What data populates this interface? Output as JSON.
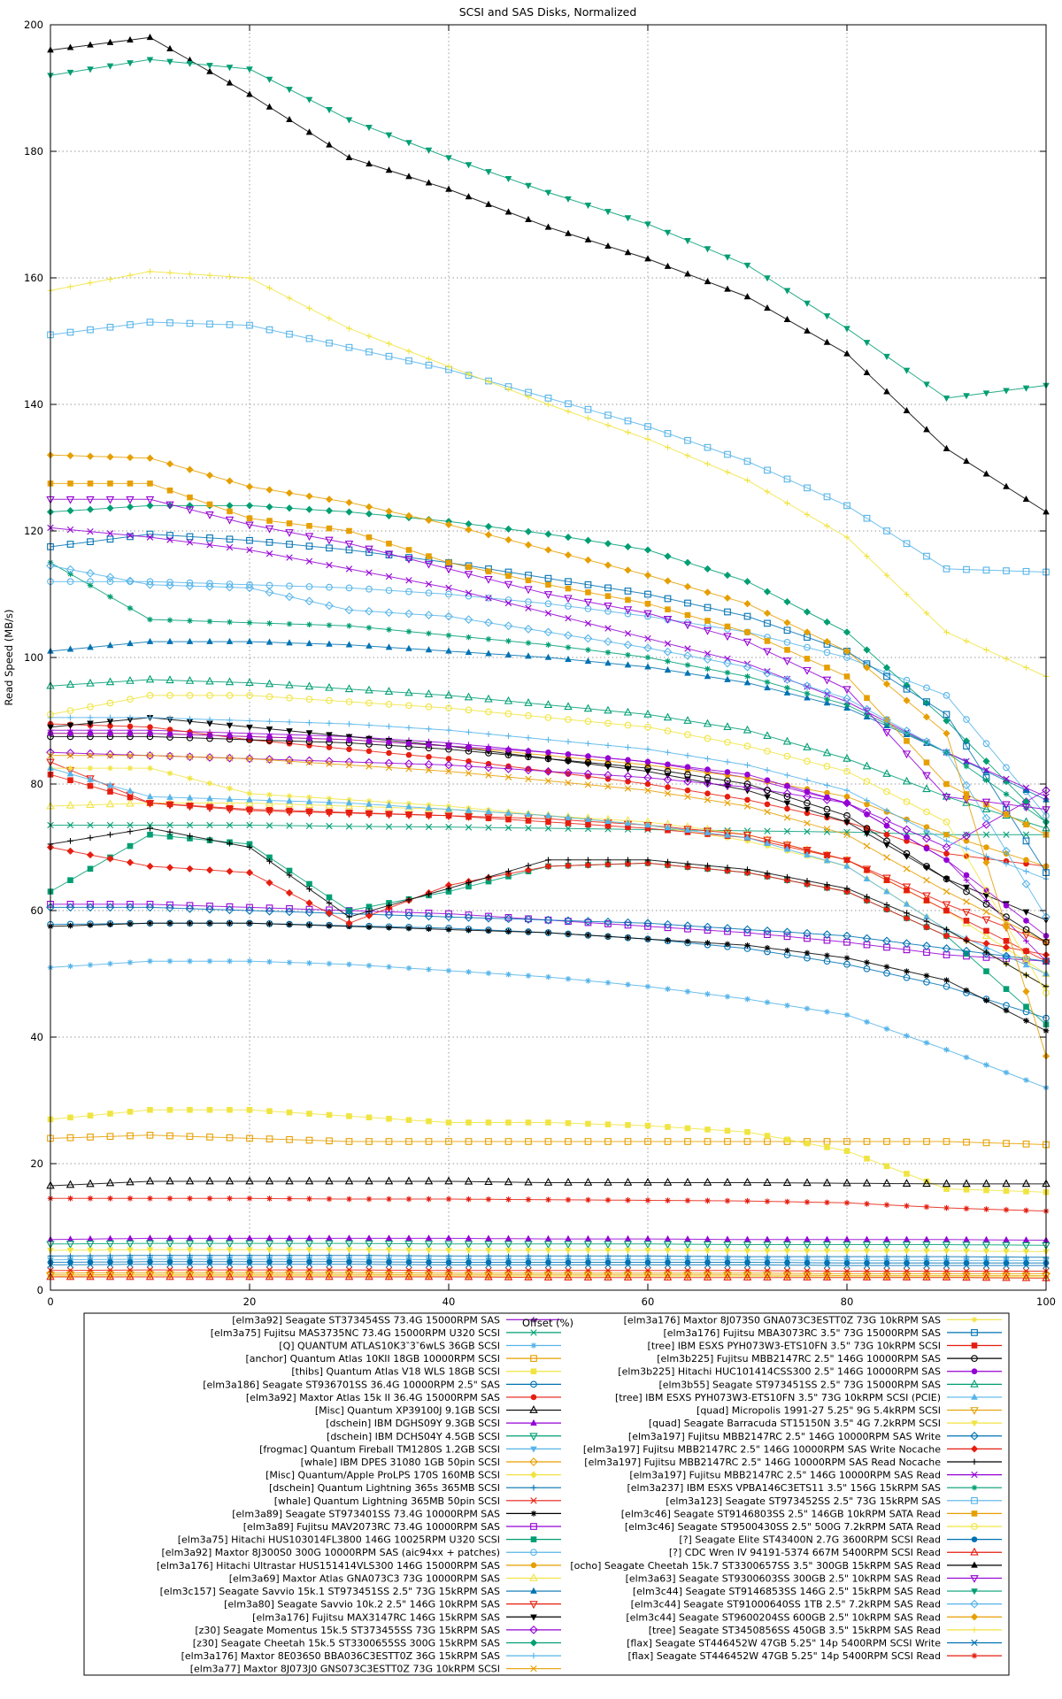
{
  "chart_data": {
    "type": "line",
    "title": "SCSI and SAS Disks, Normalized",
    "xlabel": "Offset (%)",
    "ylabel": "Read Speed (MB/s)",
    "xlim": [
      0,
      100
    ],
    "ylim": [
      0,
      200
    ],
    "xticks": [
      0,
      20,
      40,
      60,
      80,
      100
    ],
    "yticks": [
      0,
      20,
      40,
      60,
      80,
      100,
      120,
      140,
      160,
      180,
      200
    ],
    "grid": true,
    "legend_position": "below-two-columns",
    "legend_columns": [
      28,
      27
    ],
    "palette": [
      "#9400d3",
      "#009e73",
      "#56b4e9",
      "#e69f00",
      "#f0e442",
      "#0072b2",
      "#e51e10",
      "#000000"
    ],
    "x_anchors": [
      0,
      10,
      20,
      30,
      40,
      50,
      60,
      70,
      80,
      90,
      100
    ],
    "marker_step": 2,
    "series": [
      {
        "label": "[elm3a92] Seagate ST373454SS 73.4G 15000RPM SAS",
        "color": "#9400d3",
        "marker": "plus",
        "values": [
          88.5,
          88.5,
          88,
          87.5,
          86.5,
          85,
          83.5,
          81,
          77,
          68,
          52
        ]
      },
      {
        "label": "[elm3a75] Fujitsu MAS3735NC 73.4G 15000RPM U320 SCSI",
        "color": "#009e73",
        "marker": "cross",
        "values": [
          73.5,
          73.5,
          73.5,
          73.3,
          73.2,
          73,
          72.8,
          72.6,
          72.4,
          72,
          72
        ]
      },
      {
        "label": "[Q] QUANTUM ATLAS10K3‶3‶6wLS 36GB SCSI",
        "color": "#56b4e9",
        "marker": "star",
        "values": [
          51,
          52,
          52,
          51.5,
          50.5,
          49.5,
          48,
          46,
          43.5,
          38,
          32
        ]
      },
      {
        "label": "[anchor] Quantum Atlas 10KII 18GB 10000RPM SCSI",
        "color": "#e69f00",
        "marker": "box",
        "values": [
          24,
          24.5,
          24,
          23.5,
          23.5,
          23.5,
          23.5,
          23.5,
          23.5,
          23.5,
          23
        ]
      },
      {
        "label": "[thibs] Quantum Atlas V18 WLS 18GB SCSI",
        "color": "#f0e442",
        "marker": "box-filled",
        "values": [
          27,
          28.5,
          28.5,
          27.5,
          26.5,
          26.5,
          26,
          25,
          22,
          16,
          15.5
        ]
      },
      {
        "label": "[elm3a186] Seagate ST936701SS 36.4G 10000RPM 2.5\" SAS",
        "color": "#0072b2",
        "marker": "circle",
        "values": [
          57.8,
          58,
          58,
          57.6,
          57.2,
          56.5,
          55.5,
          54,
          51.5,
          48,
          43
        ]
      },
      {
        "label": "[elm3a92] Maxtor Atlas 15k II 36.4G 15000RPM SAS",
        "color": "#e51e10",
        "marker": "circle-filled",
        "values": [
          89.5,
          89,
          87,
          85.5,
          84,
          82,
          80,
          77.5,
          74,
          69,
          67
        ]
      },
      {
        "label": "[Misc] Quantum XP39100J 9.1GB SCSI",
        "color": "#000000",
        "marker": "triangle-up",
        "values": [
          16.5,
          17.2,
          17.2,
          17.2,
          17.2,
          17,
          17,
          17,
          16.9,
          16.8,
          16.8
        ]
      },
      {
        "label": "[dschein] IBM DGHS09Y 9.3GB SCSI",
        "color": "#9400d3",
        "marker": "triangle-up-filled",
        "values": [
          8,
          8.2,
          8.2,
          8.2,
          8.2,
          8.1,
          8.1,
          8,
          8,
          8,
          7.9
        ]
      },
      {
        "label": "[dschein] IBM DCHS04Y 4.5GB SCSI",
        "color": "#009e73",
        "marker": "triangle-down",
        "values": [
          7.3,
          7.4,
          7.4,
          7.4,
          7.3,
          7.3,
          7.3,
          7.2,
          7.2,
          7.2,
          7.1
        ]
      },
      {
        "label": "[frogmac] Quantum Fireball TM1280S 1.2GB SCSI",
        "color": "#56b4e9",
        "marker": "triangle-down-filled",
        "values": [
          4.8,
          4.9,
          4.9,
          4.9,
          4.8,
          4.8,
          4.8,
          4.8,
          4.7,
          4.7,
          4.7
        ]
      },
      {
        "label": "[whale] IBM DPES 31080 1GB 50pin SCSI",
        "color": "#e69f00",
        "marker": "diamond",
        "values": [
          2.7,
          2.8,
          2.8,
          2.8,
          2.7,
          2.7,
          2.7,
          2.7,
          2.6,
          2.6,
          2.6
        ]
      },
      {
        "label": "[Misc] Quantum/Apple ProLPS 170S 160MB SCSI",
        "color": "#f0e442",
        "marker": "diamond-filled",
        "values": [
          2.2,
          2.3,
          2.3,
          2.3,
          2.2,
          2.2,
          2.2,
          2.2,
          2.1,
          2.1,
          2.1
        ]
      },
      {
        "label": "[dschein] Quantum Lightning 365s 365MB SCSI",
        "color": "#0072b2",
        "marker": "plus",
        "values": [
          5.4,
          5.5,
          5.5,
          5.5,
          5.4,
          5.4,
          5.4,
          5.3,
          5.3,
          5.3,
          5.2
        ]
      },
      {
        "label": "[whale] Quantum Lightning 365MB 50pin SCSI",
        "color": "#e51e10",
        "marker": "cross",
        "values": [
          3.1,
          3.2,
          3.2,
          3.2,
          3.1,
          3.1,
          3.1,
          3.1,
          3,
          3,
          3
        ]
      },
      {
        "label": "[elm3a89] Seagate ST973401SS 73.4G 10000RPM SAS",
        "color": "#000000",
        "marker": "star",
        "values": [
          57.5,
          58,
          58,
          57.5,
          57,
          56.5,
          55.5,
          54.5,
          52.5,
          49,
          41
        ]
      },
      {
        "label": "[elm3a89] Fujitsu MAV2073RC 73.4G 10000RPM SAS",
        "color": "#9400d3",
        "marker": "box",
        "values": [
          61,
          61,
          60.5,
          60,
          59.5,
          58.5,
          57.5,
          56.5,
          55,
          53,
          52
        ]
      },
      {
        "label": "[elm3a75] Hitachi HUS103014FL3800 146G 10025RPM U320 SCSI",
        "color": "#009e73",
        "marker": "box-filled",
        "values": [
          63,
          72,
          70.5,
          60,
          63,
          67,
          67.5,
          66,
          63,
          56,
          42
        ]
      },
      {
        "label": "[elm3a92] Maxtor 8J300S0 300G 10000RPM SAS (aic94xx + patches)",
        "color": "#56b4e9",
        "marker": "circle",
        "values": [
          112,
          112,
          111.5,
          111,
          110,
          108.5,
          106.5,
          104,
          100,
          94,
          75
        ]
      },
      {
        "label": "[elm3a176] Hitachi Ultrastar HUS151414VLS300 146G 15000RPM SAS",
        "color": "#e69f00",
        "marker": "circle-filled",
        "values": [
          88,
          88,
          87.5,
          87,
          86,
          84.5,
          83,
          81,
          78,
          72,
          67
        ]
      },
      {
        "label": "[elm3a69] Maxtor Atlas GNA073C3 73G 10000RPM SAS",
        "color": "#f0e442",
        "marker": "triangle-up",
        "values": [
          76.5,
          77,
          77,
          76.5,
          76,
          75,
          74,
          72,
          68,
          60,
          50
        ]
      },
      {
        "label": "[elm3c157] Seagate Savvio 15k.1 ST973451SS 2.5\" 73G 15kRPM SAS",
        "color": "#0072b2",
        "marker": "triangle-up-filled",
        "values": [
          101,
          102.5,
          102.5,
          102,
          101,
          100,
          98.5,
          96,
          92,
          85,
          77.5
        ]
      },
      {
        "label": "[elm3a80] Seagate Savvio 10k.2 2.5\" 146G 10kRPM SAS",
        "color": "#e51e10",
        "marker": "triangle-down",
        "values": [
          83.5,
          77,
          75.8,
          75.4,
          75,
          74.5,
          73.5,
          72,
          68,
          61,
          55
        ]
      },
      {
        "label": "[elm3a176] Fujitsu MAX3147RC 146G 15kRPM SAS",
        "color": "#000000",
        "marker": "triangle-down-filled",
        "values": [
          89,
          90.5,
          89,
          87.5,
          86,
          84,
          82,
          79,
          74,
          65,
          58.5
        ]
      },
      {
        "label": "[z30] Seagate Momentus 15k.5 ST373455SS 73G 15kRPM SAS",
        "color": "#9400d3",
        "marker": "diamond",
        "values": [
          85,
          84.5,
          84,
          83.5,
          83,
          82,
          81,
          79.5,
          77,
          70,
          79
        ]
      },
      {
        "label": "[z30] Seagate Cheetah 15k.5 ST3300655SS 300G 15kRPM SAS",
        "color": "#009e73",
        "marker": "diamond-filled",
        "values": [
          123,
          124,
          124,
          123,
          121.5,
          119.5,
          117,
          112,
          104,
          90,
          74
        ]
      },
      {
        "label": "[elm3a176] Maxtor 8E036S0 BBA036C3ESTT0Z 36G 15kRPM SAS",
        "color": "#56b4e9",
        "marker": "plus",
        "values": [
          90.5,
          90.5,
          90,
          89.5,
          88.5,
          87,
          85.5,
          83,
          79,
          71,
          65
        ]
      },
      {
        "label": "[elm3a77] Maxtor 8J073J0 GNS073C3ESTT0Z 73G 10kRPM SCSI",
        "color": "#e69f00",
        "marker": "cross",
        "values": [
          84.5,
          84.5,
          84,
          83,
          82,
          80.5,
          79,
          76.5,
          72,
          63,
          55
        ]
      },
      {
        "label": "[elm3a176] Maxtor 8J073S0 GNA073C3ESTT0Z 73G 10kRPM SAS",
        "color": "#f0e442",
        "marker": "star",
        "values": [
          82.5,
          82.5,
          78.5,
          77.5,
          76.5,
          75,
          73.5,
          71,
          67,
          57,
          48
        ]
      },
      {
        "label": "[elm3a176] Fujitsu MBA3073RC 3.5\" 73G 15000RPM SAS",
        "color": "#0072b2",
        "marker": "box",
        "values": [
          117.5,
          119.5,
          118.5,
          117,
          115,
          112.5,
          110,
          106.5,
          101,
          91,
          66
        ]
      },
      {
        "label": "[tree] IBM ESXS PYH073W3-ETS10FN 3.5\" 73G 10kRPM SCSI",
        "color": "#e51e10",
        "marker": "box-filled",
        "values": [
          81.5,
          77,
          76,
          75.5,
          75,
          74,
          73,
          71.5,
          68,
          60,
          52
        ]
      },
      {
        "label": "[elm3b225] Fujitsu MBB2147RC 2.5\" 146G 10000RPM SAS",
        "color": "#000000",
        "marker": "circle",
        "values": [
          87.5,
          87.5,
          87,
          86.5,
          85.5,
          84,
          82.5,
          80,
          75,
          65,
          55
        ]
      },
      {
        "label": "[elm3b225] Hitachi HUC101414CSS300 2.5\" 146G 10000RPM SAS",
        "color": "#9400d3",
        "marker": "circle-filled",
        "values": [
          88,
          88,
          87.5,
          87,
          86,
          85,
          83.5,
          81.5,
          77,
          68,
          56
        ]
      },
      {
        "label": "[elm3b55] Seagate ST973451SS 2.5\" 73G 15000RPM SAS",
        "color": "#009e73",
        "marker": "triangle-up",
        "values": [
          95.5,
          96.5,
          96,
          95,
          94,
          92.5,
          91,
          88.5,
          84,
          78,
          73
        ]
      },
      {
        "label": "[tree] IBM ESXS PYH073W3-ETS10FN 3.5\" 73G 10kRPM SCSI (PCIE)",
        "color": "#56b4e9",
        "marker": "triangle-up-filled",
        "values": [
          82.5,
          78,
          77.5,
          77,
          76,
          75,
          73.5,
          71.5,
          67,
          57,
          50
        ]
      },
      {
        "label": "[quad] Micropolis 1991-27 5.25\" 9G 5.4kRPM SCSI",
        "color": "#e69f00",
        "marker": "triangle-down",
        "values": [
          2.4,
          2.5,
          2.5,
          2.5,
          2.4,
          2.4,
          2.4,
          2.4,
          2.3,
          2.3,
          2.3
        ]
      },
      {
        "label": "[quad] Seagate Barracuda ST15150N 3.5\" 4G 7.2kRPM SCSI",
        "color": "#f0e442",
        "marker": "triangle-down-filled",
        "values": [
          6.3,
          6.4,
          6.4,
          6.4,
          6.3,
          6.3,
          6.3,
          6.2,
          6.2,
          6.2,
          6.1
        ]
      },
      {
        "label": "[elm3a197] Fujitsu MBB2147RC 2.5\" 146G 10000RPM SAS Write",
        "color": "#0072b2",
        "marker": "diamond",
        "values": [
          60.5,
          60.5,
          60,
          59.5,
          59,
          58.5,
          58,
          57,
          56,
          54,
          52
        ]
      },
      {
        "label": "[elm3a197] Fujitsu MBB2147RC 2.5\" 146G 10000RPM SAS Write Nocache",
        "color": "#e51e10",
        "marker": "diamond-filled",
        "values": [
          70,
          67,
          66,
          58,
          64,
          67,
          67.5,
          66,
          63,
          56,
          53
        ]
      },
      {
        "label": "[elm3a197] Fujitsu MBB2147RC 2.5\" 146G 10000RPM SAS Read Nocache",
        "color": "#000000",
        "marker": "plus",
        "values": [
          70.5,
          73,
          70,
          59,
          63.5,
          68,
          68,
          66.5,
          63.5,
          57,
          48
        ]
      },
      {
        "label": "[elm3a197] Fujitsu MBB2147RC 2.5\" 146G 10000RPM SAS Read",
        "color": "#9400d3",
        "marker": "cross",
        "values": [
          120.5,
          119,
          117,
          114,
          111,
          107,
          103,
          99,
          93,
          85,
          78
        ]
      },
      {
        "label": "[elm3a237] IBM ESXS VPBA146C3ETS11 3.5\" 156G 15kRPM SAS",
        "color": "#009e73",
        "marker": "star",
        "values": [
          115,
          106,
          105.5,
          105,
          103.5,
          102,
          100,
          97,
          92.5,
          85,
          74
        ]
      },
      {
        "label": "[elm3a123] Seagate ST973452SS 2.5\" 73G 15kRPM SAS",
        "color": "#56b4e9",
        "marker": "box",
        "values": [
          151,
          153,
          152.5,
          149,
          145.5,
          141,
          136.5,
          131,
          124,
          114,
          113.5
        ]
      },
      {
        "label": "[elm3c46] Seagate ST9146803SS 2.5\" 146GB 10kRPM SATA Read",
        "color": "#e69f00",
        "marker": "box-filled",
        "values": [
          127.5,
          127.5,
          122,
          120,
          115,
          111.5,
          108.5,
          104,
          97,
          80,
          72
        ]
      },
      {
        "label": "[elm3c46] Seagate ST9500430SS 2.5\" 500G 7.2kRPM SATA Read",
        "color": "#f0e442",
        "marker": "circle",
        "values": [
          91,
          94,
          94,
          93,
          92,
          90.5,
          89,
          86,
          82,
          74,
          47
        ]
      },
      {
        "label": "[?] Seagate Elite ST43400N 2.7G 3600RPM SCSI Read",
        "color": "#0072b2",
        "marker": "circle-filled",
        "values": [
          4.4,
          4.5,
          4.5,
          4.5,
          4.4,
          4.4,
          4.4,
          4.4,
          4.3,
          4.3,
          4.3
        ]
      },
      {
        "label": "[?] CDC Wren IV 94191-5374 667M 5400RPM SCSI Read",
        "color": "#e51e10",
        "marker": "triangle-up",
        "values": [
          2.1,
          2.1,
          2.1,
          2.1,
          2.1,
          2,
          2,
          2,
          2,
          2,
          1.9
        ]
      },
      {
        "label": "[ocho] Seagate Cheetah 15k.7 ST3300657SS 3.5\" 300GB 15kRPM SAS Read",
        "color": "#000000",
        "marker": "triangle-up-filled",
        "values": [
          196,
          198,
          189,
          179,
          174,
          168,
          163,
          157,
          148,
          133,
          123
        ]
      },
      {
        "label": "[elm3a63] Seagate ST9300603SS 300GB 2.5\" 10kRPM SAS Read",
        "color": "#9400d3",
        "marker": "triangle-down",
        "values": [
          125,
          125,
          121,
          118,
          114,
          110,
          107,
          102.5,
          95,
          78,
          76
        ]
      },
      {
        "label": "[elm3c44] Seagate ST9146853SS 146G 2.5\" 15kRPM SAS Read",
        "color": "#009e73",
        "marker": "triangle-down-filled",
        "values": [
          192,
          194.5,
          193,
          185,
          179,
          173.5,
          168.5,
          162,
          152,
          141,
          143
        ]
      },
      {
        "label": "[elm3c44] Seagate ST91000640SS 1TB 2.5\" 7.2kRPM SAS Read",
        "color": "#56b4e9",
        "marker": "diamond",
        "values": [
          114.5,
          111.5,
          111,
          107.5,
          106.5,
          104,
          101.5,
          98.5,
          93.5,
          85,
          59
        ]
      },
      {
        "label": "[elm3c44] Seagate ST9600204SS 600GB 2.5\" 10kRPM SAS Read",
        "color": "#e69f00",
        "marker": "diamond-filled",
        "values": [
          132,
          131.5,
          127,
          124.5,
          121,
          117,
          113,
          108.5,
          101,
          88,
          37
        ]
      },
      {
        "label": "[tree] Seagate ST3450856SS 450GB 3.5\" 15kRPM SAS Read",
        "color": "#f0e442",
        "marker": "plus",
        "values": [
          158,
          161,
          160,
          152,
          146,
          140,
          134.5,
          128,
          119,
          104,
          97
        ]
      },
      {
        "label": "[flax] Seagate ST446452W 47GB 5.25\" 14p 5400RPM SCSI Write",
        "color": "#0072b2",
        "marker": "cross",
        "values": [
          4,
          4.1,
          4.1,
          4.1,
          4,
          4,
          4,
          4,
          3.9,
          3.9,
          3.9
        ]
      },
      {
        "label": "[flax] Seagate ST446452W 47GB 5.25\" 14p 5400RPM SCSI Read",
        "color": "#e51e10",
        "marker": "star",
        "values": [
          14.5,
          14.5,
          14.5,
          14.4,
          14.4,
          14.3,
          14.2,
          14.1,
          13.8,
          13,
          12.5
        ]
      }
    ]
  }
}
